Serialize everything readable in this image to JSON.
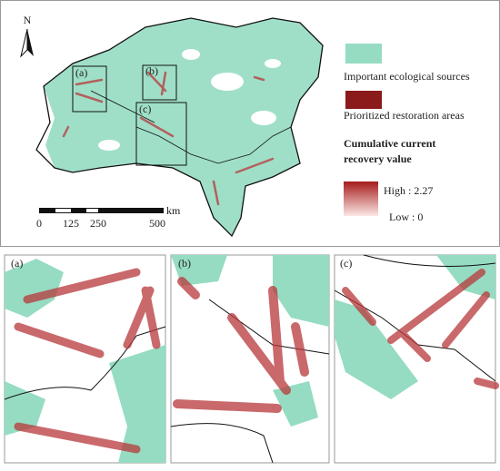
{
  "map": {
    "north": "N",
    "inset_labels": [
      "(a)",
      "(b)",
      "(c)"
    ],
    "scale": {
      "ticks": [
        "0",
        "125",
        "250",
        "500"
      ],
      "unit": "km"
    }
  },
  "legend": {
    "sources": "Important ecological sources",
    "restoration": "Prioritized restoration areas",
    "title_line1": "Cumulative current",
    "title_line2": "recovery value",
    "high": "High : 2.27",
    "low": "Low : 0"
  },
  "panels": [
    {
      "label": "(a)"
    },
    {
      "label": "(b)"
    },
    {
      "label": "(c)"
    }
  ]
}
